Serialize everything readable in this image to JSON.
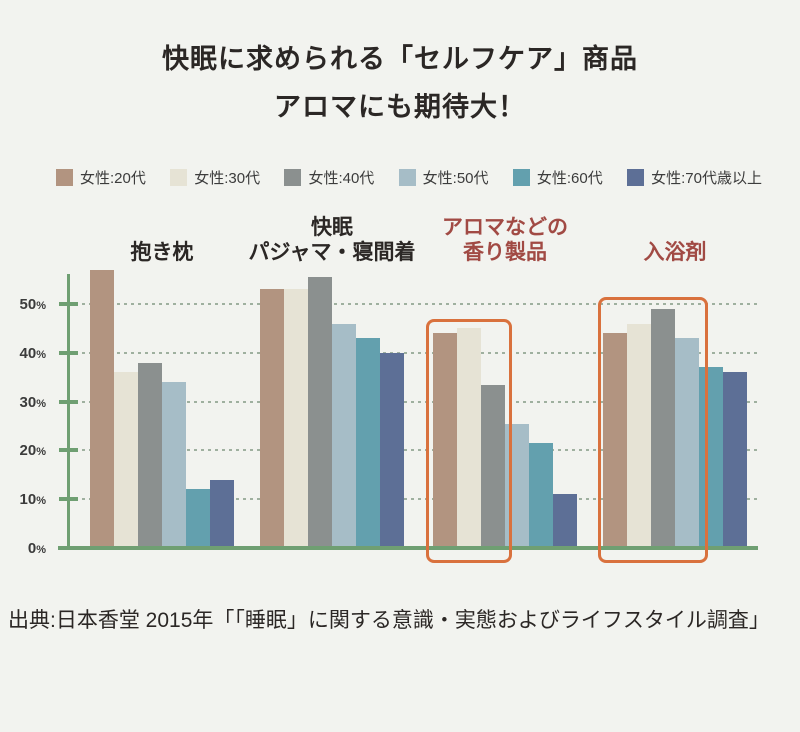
{
  "title": {
    "line1": "快眠に求められる「セルフケア」商品",
    "line2": "アロマにも期待大！"
  },
  "legend": [
    {
      "label": "女性:20代",
      "color": "#b29480"
    },
    {
      "label": "女性:30代",
      "color": "#e6e3d5"
    },
    {
      "label": "女性:40代",
      "color": "#8b908f"
    },
    {
      "label": "女性:50代",
      "color": "#a6bdc7"
    },
    {
      "label": "女性:60代",
      "color": "#63a0ae"
    },
    {
      "label": "女性:70代歳以上",
      "color": "#5d6f96"
    }
  ],
  "chart_data": {
    "type": "bar",
    "title": "快眠に求められる「セルフケア」商品 アロマにも期待大！",
    "xlabel": "",
    "ylabel": "",
    "ylim": [
      0,
      57
    ],
    "yticks": [
      0,
      10,
      20,
      30,
      40,
      50
    ],
    "ytick_labels": [
      "0%",
      "10%",
      "20%",
      "30%",
      "40%",
      "50%"
    ],
    "grid": "dotted-horizontal",
    "legend_position": "top",
    "series_names": [
      "女性:20代",
      "女性:30代",
      "女性:40代",
      "女性:50代",
      "女性:60代",
      "女性:70代歳以上"
    ],
    "series_colors": [
      "#b29480",
      "#e6e3d5",
      "#8b908f",
      "#a6bdc7",
      "#63a0ae",
      "#5d6f96"
    ],
    "categories": [
      {
        "label_lines": [
          "抱き枕"
        ],
        "label_color": "#2b2725",
        "values": [
          57,
          36,
          38,
          34,
          12,
          14
        ]
      },
      {
        "label_lines": [
          "快眠",
          "パジャマ・寝間着"
        ],
        "label_color": "#2b2725",
        "values": [
          53,
          53,
          55.5,
          46,
          43,
          40
        ]
      },
      {
        "label_lines": [
          "アロマなどの",
          "香り製品"
        ],
        "label_color": "#a14a44",
        "values": [
          44,
          45,
          33.5,
          25.5,
          21.5,
          11
        ]
      },
      {
        "label_lines": [
          "入浴剤"
        ],
        "label_color": "#a14a44",
        "values": [
          44,
          46,
          49,
          43,
          37,
          36
        ]
      }
    ],
    "annotations": {
      "highlight_boxes": [
        {
          "category_index": 2,
          "bars_covered": 3,
          "top_percent": 47,
          "left_offset": -7,
          "color": "#d9713d"
        },
        {
          "category_index": 3,
          "bars_covered": 4,
          "top_percent": 51.5,
          "left_offset": -5,
          "color": "#d9713d"
        }
      ]
    }
  },
  "source": "出典:日本香堂 2015年「「睡眠」に関する意識・実態およびライフスタイル調査」",
  "colors": {
    "background": "#f2f3ef",
    "axis_green": "#6f9f72",
    "gridline": "#9fb09f",
    "highlight_orange": "#d9713d",
    "category_red": "#a14a44",
    "text_dark": "#2b2725"
  }
}
